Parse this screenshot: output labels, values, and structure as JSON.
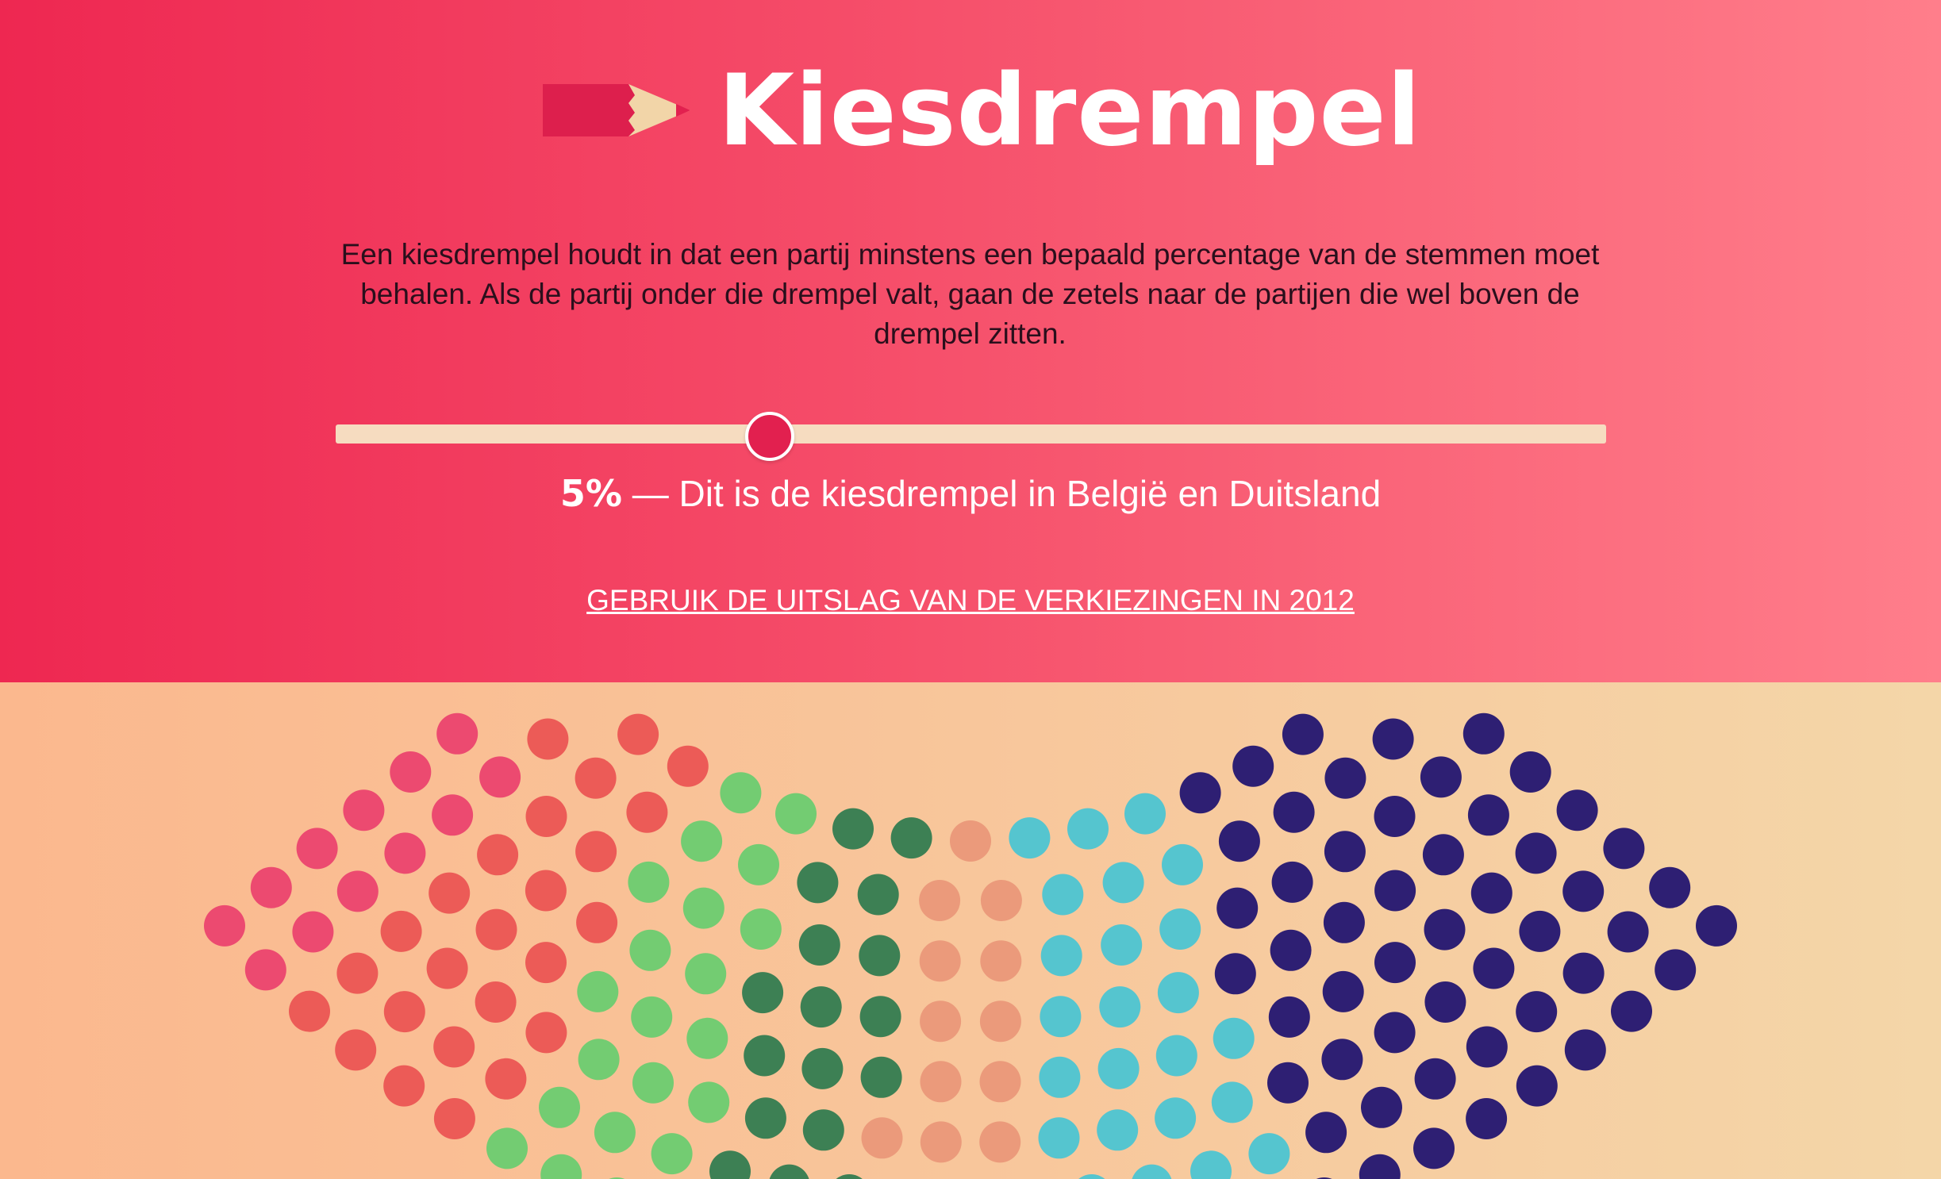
{
  "header": {
    "title": "Kiesdrempel",
    "intro": "Een kiesdrempel houdt in dat een partij minstens een bepaald percentage van de stemmen moet behalen. Als de partij onder die drempel valt, gaan de zetels naar de partijen die wel boven de drempel zitten."
  },
  "slider": {
    "value_percent": 5,
    "value_label": "5%",
    "description": "— Dit is de kiesdrempel in België en Duitsland"
  },
  "link": {
    "label": "GEBRUIK DE UITSLAG VAN DE VERKIEZINGEN IN 2012"
  },
  "colors": {
    "party_navy": "#2e1f73",
    "party_cyan": "#55c5cf",
    "party_peach": "#eb9a7b",
    "party_darkgreen": "#3d8054",
    "party_green": "#73cc72",
    "party_coral": "#ec5b57",
    "party_pink": "#ec4a70",
    "accent": "#e2204f"
  },
  "parliament": {
    "parties": [
      {
        "color_key": "party_navy",
        "seats_visible": 43
      },
      {
        "color_key": "party_cyan",
        "seats_visible": 20
      },
      {
        "color_key": "party_peach",
        "seats_visible": 10
      },
      {
        "color_key": "party_darkgreen",
        "seats_visible": 14
      },
      {
        "color_key": "party_green",
        "seats_visible": 17
      },
      {
        "color_key": "party_coral",
        "seats_visible": 21
      },
      {
        "color_key": "party_pink",
        "seats_visible": 10
      }
    ]
  },
  "icons": {
    "pencil": "pencil-icon"
  }
}
